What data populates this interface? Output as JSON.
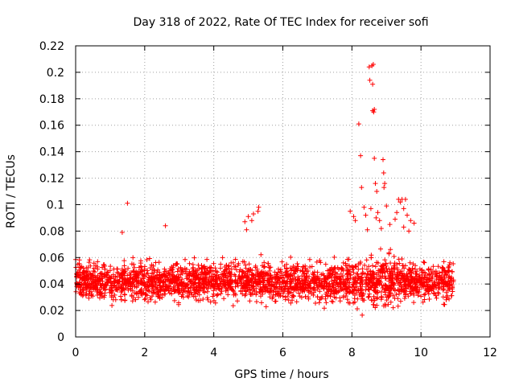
{
  "chart_data": {
    "type": "scatter",
    "title": "Day 318 of 2022, Rate Of TEC Index for receiver sofi",
    "xlabel": "GPS time / hours",
    "ylabel": "ROTI / TECUs",
    "xlim": [
      0,
      12
    ],
    "ylim": [
      0,
      0.22
    ],
    "xticks": [
      0,
      2,
      4,
      6,
      8,
      10,
      12
    ],
    "yticks": [
      0,
      0.02,
      0.04,
      0.06,
      0.08,
      0.1,
      0.12,
      0.14,
      0.16,
      0.18,
      0.2,
      0.22
    ],
    "xtick_labels": [
      "0",
      "2",
      "4",
      "6",
      "8",
      "10",
      "12"
    ],
    "ytick_labels": [
      "0",
      "0.02",
      "0.04",
      "0.06",
      "0.08",
      "0.1",
      "0.12",
      "0.14",
      "0.16",
      "0.18",
      "0.2",
      "0.22"
    ],
    "grid": true,
    "marker": "+",
    "color": "#ff0000",
    "series": [
      {
        "name": "ROTI",
        "points": [
          [
            1.5,
            0.101
          ],
          [
            1.35,
            0.079
          ],
          [
            2.6,
            0.084
          ],
          [
            4.9,
            0.087
          ],
          [
            5.0,
            0.091
          ],
          [
            5.15,
            0.093
          ],
          [
            5.3,
            0.098
          ],
          [
            5.28,
            0.095
          ],
          [
            5.1,
            0.088
          ],
          [
            4.95,
            0.081
          ],
          [
            7.95,
            0.095
          ],
          [
            8.05,
            0.091
          ],
          [
            8.1,
            0.088
          ],
          [
            8.2,
            0.161
          ],
          [
            8.25,
            0.137
          ],
          [
            8.28,
            0.113
          ],
          [
            8.35,
            0.098
          ],
          [
            8.4,
            0.092
          ],
          [
            8.5,
            0.204
          ],
          [
            8.52,
            0.194
          ],
          [
            8.58,
            0.205
          ],
          [
            8.6,
            0.191
          ],
          [
            8.62,
            0.206
          ],
          [
            8.6,
            0.171
          ],
          [
            8.65,
            0.172
          ],
          [
            8.63,
            0.17
          ],
          [
            8.55,
            0.097
          ],
          [
            8.65,
            0.135
          ],
          [
            8.68,
            0.116
          ],
          [
            8.72,
            0.11
          ],
          [
            8.75,
            0.094
          ],
          [
            8.9,
            0.134
          ],
          [
            8.92,
            0.124
          ],
          [
            8.93,
            0.113
          ],
          [
            8.95,
            0.116
          ],
          [
            9.0,
            0.099
          ],
          [
            8.7,
            0.09
          ],
          [
            8.8,
            0.088
          ],
          [
            9.35,
            0.104
          ],
          [
            9.4,
            0.102
          ],
          [
            9.45,
            0.104
          ],
          [
            9.5,
            0.097
          ],
          [
            9.55,
            0.104
          ],
          [
            9.6,
            0.092
          ],
          [
            9.7,
            0.088
          ],
          [
            9.8,
            0.086
          ],
          [
            9.3,
            0.094
          ],
          [
            9.25,
            0.089
          ],
          [
            9.5,
            0.083
          ],
          [
            9.1,
            0.085
          ],
          [
            8.85,
            0.082
          ],
          [
            9.65,
            0.08
          ],
          [
            8.45,
            0.081
          ]
        ]
      }
    ],
    "dense_band": {
      "x_range": [
        0,
        10.95
      ],
      "typical_y_range": [
        0.015,
        0.085
      ],
      "median_y": 0.042,
      "point_count": 2600
    }
  }
}
